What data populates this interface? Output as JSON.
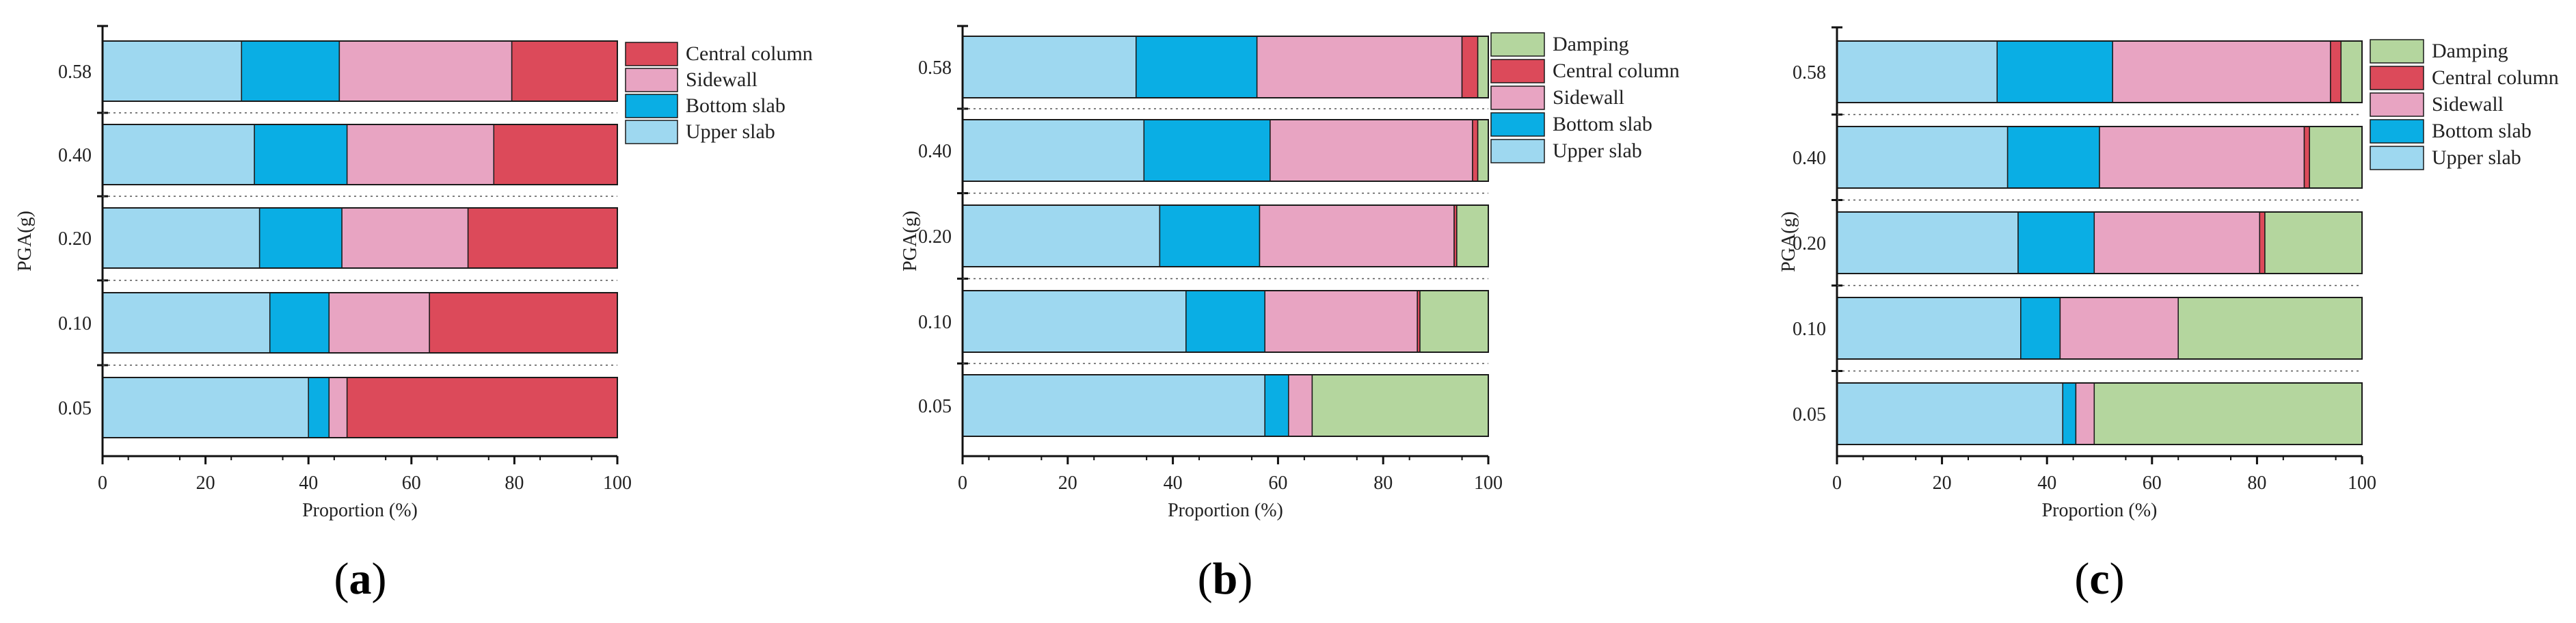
{
  "colors": {
    "Upper slab": "#9ed8f0",
    "Bottom slab": "#0aaee4",
    "Sidewall": "#e8a4c2",
    "Central column": "#dc4a5a",
    "Damping": "#b4d69e"
  },
  "chart_data": [
    {
      "type": "bar",
      "orientation": "horizontal",
      "stacked": true,
      "panel_label": "a",
      "title": "",
      "xlabel": "Proportion (%)",
      "ylabel": "",
      "xlim": [
        0,
        100
      ],
      "xticks": [
        0,
        20,
        40,
        60,
        80,
        100
      ],
      "categories": [
        "0.58",
        "0.40",
        "0.20",
        "0.10",
        "0.05"
      ],
      "legend": [
        "Central column",
        "Sidewall",
        "Bottom slab",
        "Upper slab"
      ],
      "series": [
        {
          "name": "Upper slab",
          "values": [
            27,
            29.5,
            30.5,
            32.5,
            40
          ]
        },
        {
          "name": "Bottom slab",
          "values": [
            19,
            18,
            16,
            11.5,
            4
          ]
        },
        {
          "name": "Sidewall",
          "values": [
            33.5,
            28.5,
            24.5,
            19.5,
            3.5
          ]
        },
        {
          "name": "Central column",
          "values": [
            20.5,
            24,
            29,
            36.5,
            52.5
          ]
        }
      ]
    },
    {
      "type": "bar",
      "orientation": "horizontal",
      "stacked": true,
      "panel_label": "b",
      "title": "",
      "xlabel": "Proportion (%)",
      "ylabel": "PGA(g)",
      "xlim": [
        0,
        100
      ],
      "xticks": [
        0,
        20,
        40,
        60,
        80,
        100
      ],
      "categories": [
        "0.58",
        "0.40",
        "0.20",
        "0.10",
        "0.05"
      ],
      "legend": [
        "Damping",
        "Central column",
        "Sidewall",
        "Bottom slab",
        "Upper slab"
      ],
      "series": [
        {
          "name": "Upper slab",
          "values": [
            33,
            34.5,
            37.5,
            42.5,
            57.5
          ]
        },
        {
          "name": "Bottom slab",
          "values": [
            23,
            24,
            19,
            15,
            4.5
          ]
        },
        {
          "name": "Sidewall",
          "values": [
            39,
            38.5,
            37,
            29,
            4.5
          ]
        },
        {
          "name": "Central column",
          "values": [
            3,
            1,
            0.5,
            0.5,
            0
          ]
        },
        {
          "name": "Damping",
          "values": [
            2,
            2,
            6,
            13,
            33.5
          ]
        }
      ]
    },
    {
      "type": "bar",
      "orientation": "horizontal",
      "stacked": true,
      "panel_label": "c",
      "title": "",
      "xlabel": "Proportion (%)",
      "ylabel": "PGA(g)",
      "xlim": [
        0,
        100
      ],
      "xticks": [
        0,
        20,
        40,
        60,
        80,
        100
      ],
      "categories": [
        "0.58",
        "0.40",
        "0.20",
        "0.10",
        "0.05"
      ],
      "legend": [
        "Damping",
        "Central column",
        "Sidewall",
        "Bottom slab",
        "Upper slab"
      ],
      "series": [
        {
          "name": "Upper slab",
          "values": [
            30.5,
            32.5,
            34.5,
            35,
            43
          ]
        },
        {
          "name": "Bottom slab",
          "values": [
            22,
            17.5,
            14.5,
            7.5,
            2.5
          ]
        },
        {
          "name": "Sidewall",
          "values": [
            41.5,
            39,
            31.5,
            22.5,
            3.5
          ]
        },
        {
          "name": "Central column",
          "values": [
            2,
            1,
            1,
            0,
            0
          ]
        },
        {
          "name": "Damping",
          "values": [
            4,
            10,
            18.5,
            35,
            51
          ]
        }
      ]
    }
  ]
}
